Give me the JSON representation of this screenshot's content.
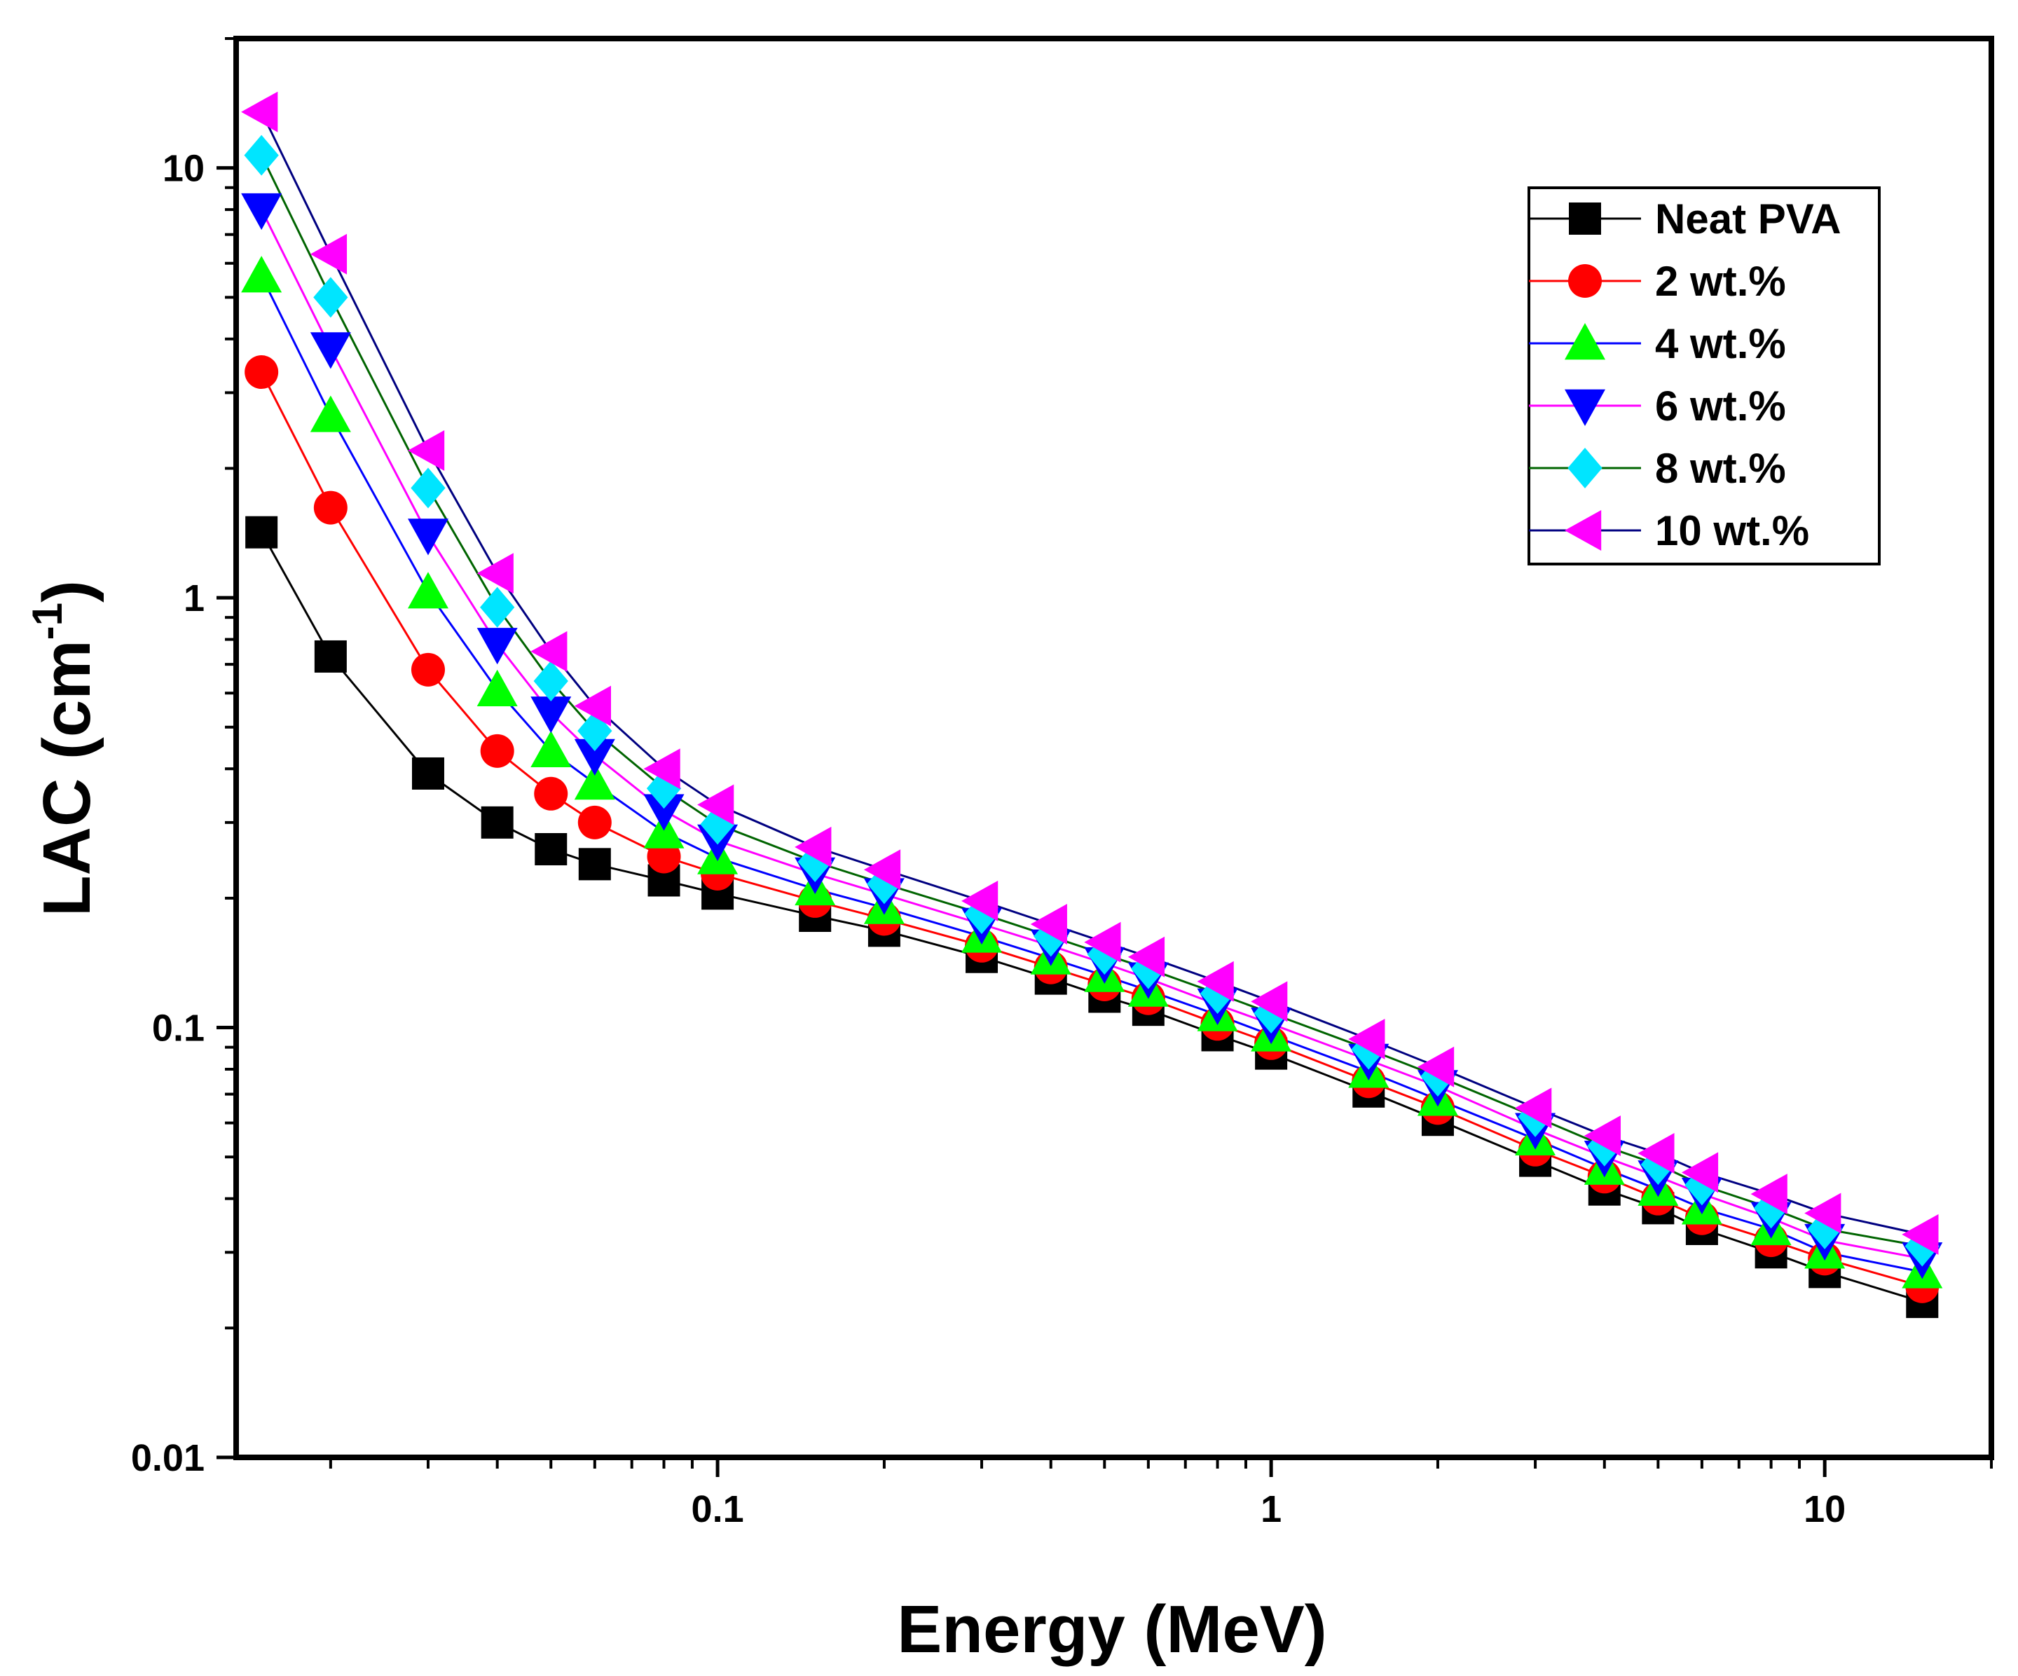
{
  "chart_data": {
    "type": "line",
    "title": "",
    "xlabel": "Energy (MeV)",
    "ylabel_main": "LAC (cm",
    "ylabel_sup": "-1",
    "ylabel_close": ")",
    "xscale": "log",
    "yscale": "log",
    "xlim": [
      0.0135,
      20
    ],
    "ylim": [
      0.01,
      20
    ],
    "x_tick_labels": [
      {
        "value": 0.1,
        "label": "0.1"
      },
      {
        "value": 1,
        "label": "1"
      },
      {
        "value": 10,
        "label": "10"
      }
    ],
    "y_tick_labels": [
      {
        "value": 0.01,
        "label": "0.01"
      },
      {
        "value": 0.1,
        "label": "0.1"
      },
      {
        "value": 1,
        "label": "1"
      },
      {
        "value": 10,
        "label": "10"
      }
    ],
    "legend_position": "top-right",
    "x": [
      0.015,
      0.02,
      0.03,
      0.04,
      0.05,
      0.06,
      0.08,
      0.1,
      0.15,
      0.2,
      0.3,
      0.4,
      0.5,
      0.6,
      0.8,
      1,
      1.5,
      2,
      3,
      4,
      5,
      6,
      8,
      10,
      15
    ],
    "series": [
      {
        "name": "Neat PVA",
        "marker": "square",
        "line_color": "#000000",
        "marker_color": "#000000",
        "values": [
          1.42,
          0.73,
          0.39,
          0.3,
          0.26,
          0.24,
          0.22,
          0.205,
          0.182,
          0.168,
          0.146,
          0.13,
          0.118,
          0.11,
          0.096,
          0.087,
          0.071,
          0.061,
          0.049,
          0.042,
          0.038,
          0.034,
          0.03,
          0.027,
          0.023
        ]
      },
      {
        "name": "2 wt.%",
        "marker": "circle",
        "line_color": "#ff0000",
        "marker_color": "#ff0000",
        "values": [
          3.35,
          1.62,
          0.68,
          0.44,
          0.35,
          0.3,
          0.25,
          0.228,
          0.197,
          0.179,
          0.155,
          0.138,
          0.126,
          0.117,
          0.102,
          0.092,
          0.075,
          0.065,
          0.052,
          0.045,
          0.04,
          0.036,
          0.032,
          0.029,
          0.025
        ]
      },
      {
        "name": "4 wt.%",
        "marker": "triangle-up",
        "line_color": "#0000ff",
        "marker_color": "#00ff00",
        "values": [
          5.6,
          2.65,
          1.03,
          0.61,
          0.44,
          0.37,
          0.285,
          0.248,
          0.21,
          0.19,
          0.163,
          0.145,
          0.132,
          0.122,
          0.107,
          0.096,
          0.079,
          0.068,
          0.055,
          0.047,
          0.042,
          0.038,
          0.034,
          0.03,
          0.027
        ]
      },
      {
        "name": "6 wt.%",
        "marker": "triangle-down",
        "line_color": "#ff00ff",
        "marker_color": "#0000ff",
        "values": [
          8.0,
          3.8,
          1.4,
          0.78,
          0.54,
          0.43,
          0.32,
          0.272,
          0.228,
          0.204,
          0.174,
          0.155,
          0.141,
          0.13,
          0.113,
          0.102,
          0.084,
          0.073,
          0.058,
          0.05,
          0.045,
          0.041,
          0.036,
          0.032,
          0.029
        ]
      },
      {
        "name": "8 wt.%",
        "marker": "diamond",
        "line_color": "#006400",
        "marker_color": "#00e5ff",
        "values": [
          10.7,
          5.0,
          1.8,
          0.95,
          0.64,
          0.49,
          0.36,
          0.297,
          0.243,
          0.216,
          0.184,
          0.163,
          0.148,
          0.137,
          0.12,
          0.108,
          0.089,
          0.077,
          0.062,
          0.053,
          0.048,
          0.043,
          0.038,
          0.034,
          0.031
        ]
      },
      {
        "name": "10 wt.%",
        "marker": "triangle-left",
        "line_color": "#000080",
        "marker_color": "#ff00ff",
        "values": [
          13.5,
          6.3,
          2.2,
          1.14,
          0.75,
          0.56,
          0.4,
          0.33,
          0.263,
          0.233,
          0.197,
          0.174,
          0.158,
          0.146,
          0.128,
          0.115,
          0.094,
          0.081,
          0.065,
          0.056,
          0.051,
          0.046,
          0.041,
          0.037,
          0.033
        ]
      }
    ]
  }
}
